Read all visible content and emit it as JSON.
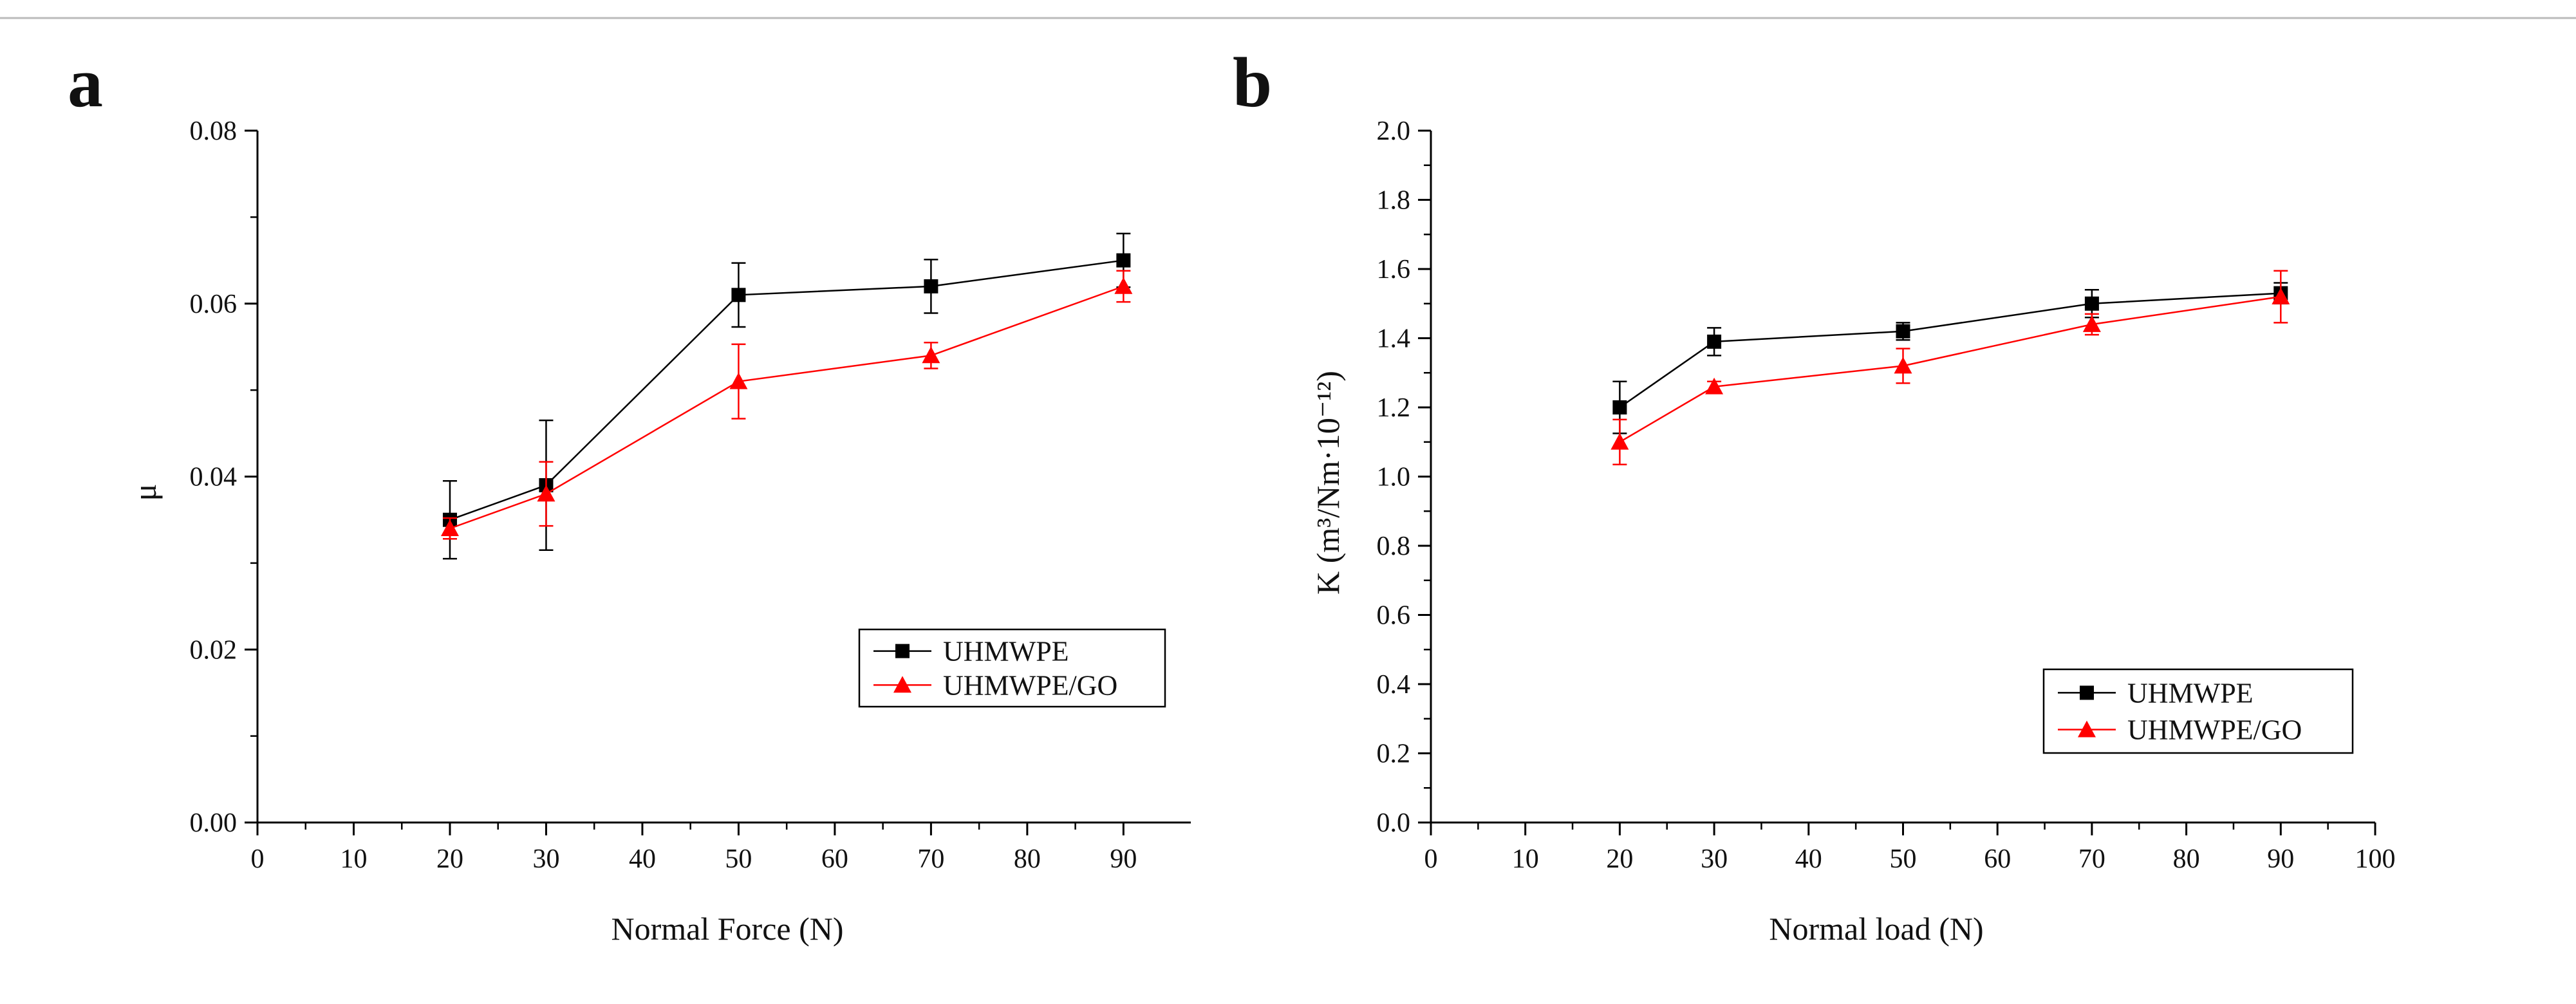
{
  "chart_data": [
    {
      "panel_label": "a",
      "type": "line",
      "xlabel": "Normal Force (N)",
      "ylabel": "μ",
      "xlim": [
        0,
        97
      ],
      "ylim": [
        0,
        0.08
      ],
      "xticks": [
        0,
        10,
        20,
        30,
        40,
        50,
        60,
        70,
        80,
        90
      ],
      "xtick_labels": [
        "0",
        "10",
        "20",
        "30",
        "40",
        "50",
        "60",
        "70",
        "80",
        "90"
      ],
      "yticks": [
        0,
        0.02,
        0.04,
        0.06,
        0.08
      ],
      "ytick_labels": [
        "0.00",
        "0.02",
        "0.04",
        "0.06",
        "0.08"
      ],
      "grid": false,
      "legend_position": "lower-right",
      "series": [
        {
          "name": "UHMWPE",
          "color": "#000000",
          "marker": "square",
          "x": [
            20,
            30,
            50,
            70,
            90
          ],
          "y": [
            0.035,
            0.039,
            0.061,
            0.062,
            0.065
          ],
          "yerr": [
            0.0045,
            0.0075,
            0.0037,
            0.0031,
            0.0031
          ]
        },
        {
          "name": "UHMWPE/GO",
          "color": "#ff0000",
          "marker": "triangle",
          "x": [
            20,
            30,
            50,
            70,
            90
          ],
          "y": [
            0.034,
            0.038,
            0.051,
            0.054,
            0.062
          ],
          "yerr": [
            0.0012,
            0.0037,
            0.0043,
            0.0015,
            0.0018
          ]
        }
      ]
    },
    {
      "panel_label": "b",
      "type": "line",
      "xlabel": "Normal load (N)",
      "ylabel": "K (m³/Nm·10⁻¹²)",
      "xlim": [
        0,
        100
      ],
      "ylim": [
        0,
        2.0
      ],
      "xticks": [
        0,
        10,
        20,
        30,
        40,
        50,
        60,
        70,
        80,
        90,
        100
      ],
      "xtick_labels": [
        "0",
        "10",
        "20",
        "30",
        "40",
        "50",
        "60",
        "70",
        "80",
        "90",
        "100"
      ],
      "yticks": [
        0,
        0.2,
        0.4,
        0.6,
        0.8,
        1.0,
        1.2,
        1.4,
        1.6,
        1.8,
        2.0
      ],
      "ytick_labels": [
        "0.0",
        "0.2",
        "0.4",
        "0.6",
        "0.8",
        "1.0",
        "1.2",
        "1.4",
        "1.6",
        "1.8",
        "2.0"
      ],
      "grid": false,
      "legend_position": "lower-right",
      "series": [
        {
          "name": "UHMWPE",
          "color": "#000000",
          "marker": "square",
          "x": [
            20,
            30,
            50,
            70,
            90
          ],
          "y": [
            1.2,
            1.39,
            1.42,
            1.5,
            1.53
          ],
          "yerr": [
            0.075,
            0.04,
            0.025,
            0.04,
            0.03
          ]
        },
        {
          "name": "UHMWPE/GO",
          "color": "#ff0000",
          "marker": "triangle",
          "x": [
            20,
            30,
            50,
            70,
            90
          ],
          "y": [
            1.1,
            1.26,
            1.32,
            1.44,
            1.52
          ],
          "yerr": [
            0.065,
            0.015,
            0.05,
            0.03,
            0.075
          ]
        }
      ]
    }
  ]
}
